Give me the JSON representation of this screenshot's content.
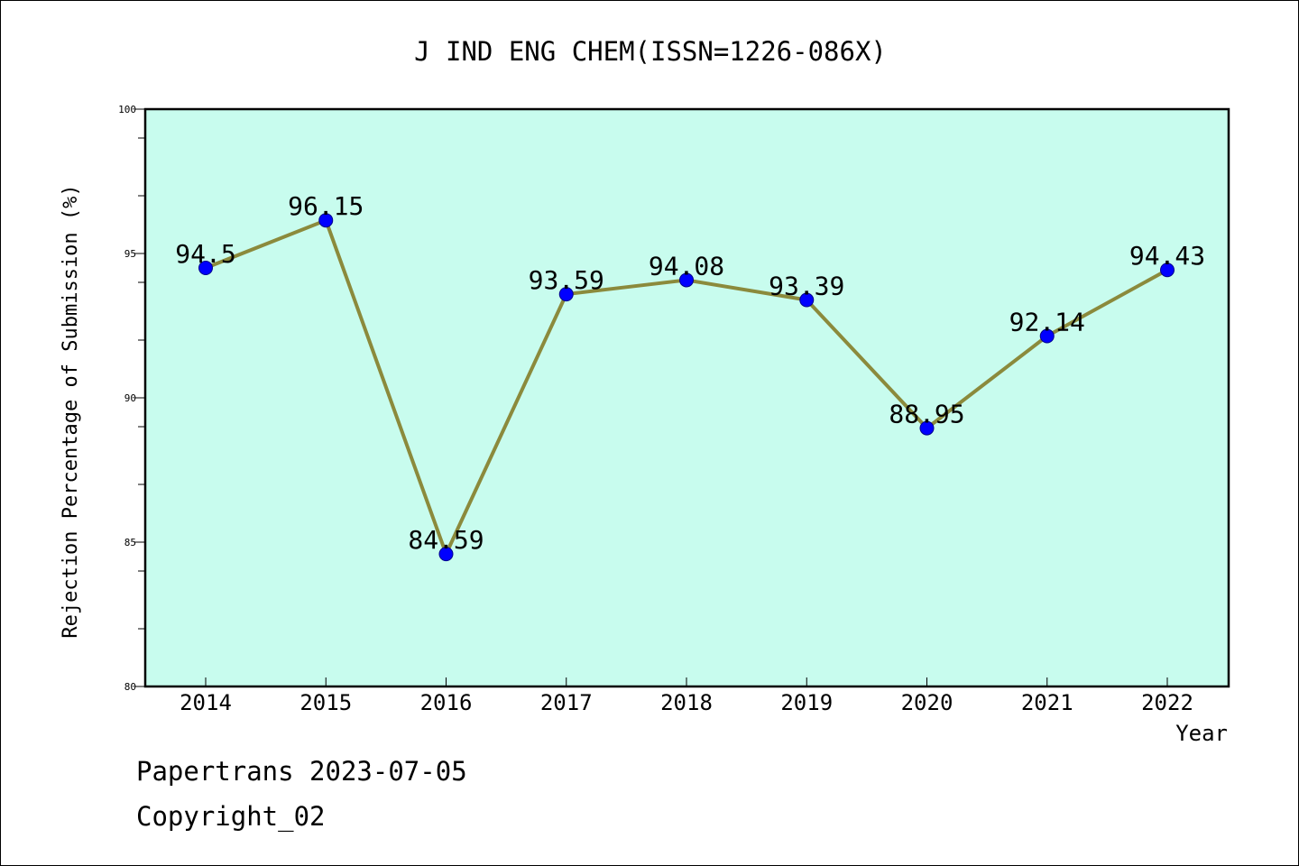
{
  "chart_data": {
    "type": "line",
    "title": "J IND ENG CHEM(ISSN=1226-086X)",
    "xlabel": "Year",
    "ylabel": "Rejection Percentage of Submission (%)",
    "categories": [
      "2014",
      "2015",
      "2016",
      "2017",
      "2018",
      "2019",
      "2020",
      "2021",
      "2022"
    ],
    "values": [
      94.5,
      96.15,
      84.59,
      93.59,
      94.08,
      93.39,
      88.95,
      92.14,
      94.43
    ],
    "data_labels": [
      "94.5",
      "96.15",
      "84.59",
      "93.59",
      "94.08",
      "93.39",
      "88.95",
      "92.14",
      "94.43"
    ],
    "ylim": [
      80,
      100
    ],
    "yticks": [
      80,
      85,
      90,
      95,
      100
    ],
    "grid": false,
    "colors": {
      "plot_background": "#c8fcee",
      "line": "#8b8a3c",
      "marker": "#0000ff"
    }
  },
  "footer": {
    "line1": "Papertrans 2023-07-05",
    "line2": "Copyright_02"
  }
}
